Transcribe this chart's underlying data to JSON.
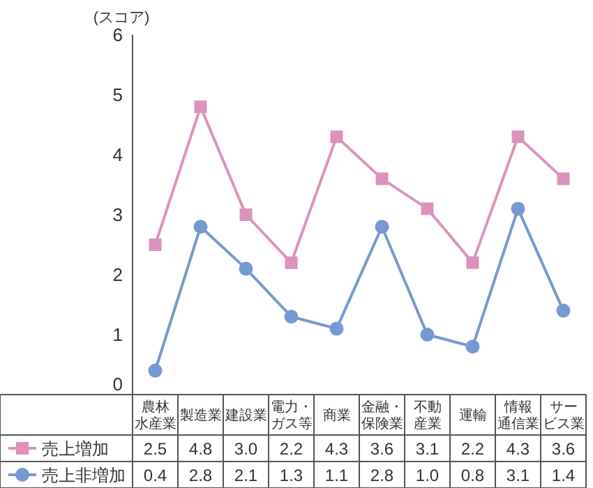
{
  "chart_data": {
    "type": "line",
    "ylabel": "(スコア)",
    "categories": [
      "農林水産業",
      "製造業",
      "建設業",
      "電力・ガス等",
      "商業",
      "金融・保険業",
      "不動産業",
      "運輸",
      "情報通信業",
      "サービス業"
    ],
    "series": [
      {
        "name": "売上増加",
        "color": "#dd92bd",
        "marker": "square",
        "values": [
          2.5,
          4.8,
          3.0,
          2.2,
          4.3,
          3.6,
          3.1,
          2.2,
          4.3,
          3.6
        ],
        "value_labels": [
          "2.5",
          "4.8",
          "3.0",
          "2.2",
          "4.3",
          "3.6",
          "3.1",
          "2.2",
          "4.3",
          "3.6"
        ]
      },
      {
        "name": "売上非増加",
        "color": "#7799d1",
        "marker": "circle",
        "values": [
          0.4,
          2.8,
          2.1,
          1.3,
          1.1,
          2.8,
          1.0,
          0.8,
          3.1,
          1.4
        ],
        "value_labels": [
          "0.4",
          "2.8",
          "2.1",
          "1.3",
          "1.1",
          "2.8",
          "1.0",
          "0.8",
          "3.1",
          "1.4"
        ]
      }
    ],
    "ylim": [
      0,
      6
    ],
    "yticks": [
      0,
      1,
      2,
      3,
      4,
      5,
      6
    ],
    "grid": false,
    "legend": "bottom left"
  }
}
